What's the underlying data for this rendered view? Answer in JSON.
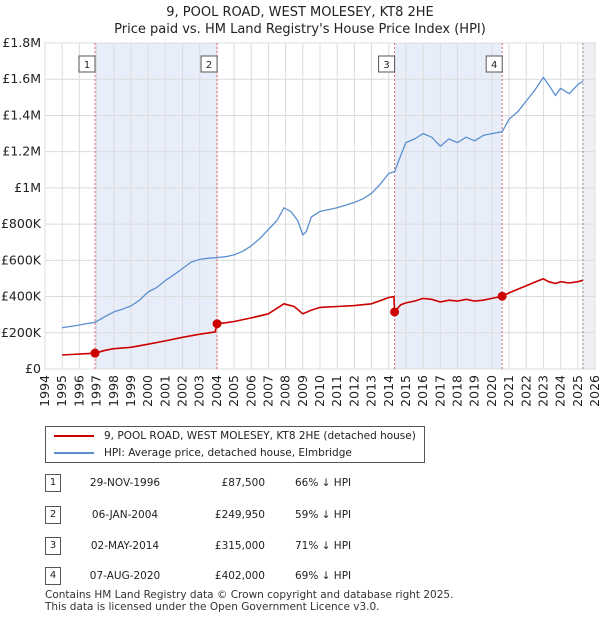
{
  "header": {
    "title": "9, POOL ROAD, WEST MOLESEY, KT8 2HE",
    "subtitle": "Price paid vs. HM Land Registry's House Price Index (HPI)"
  },
  "legend": {
    "items": [
      {
        "label": "9, POOL ROAD, WEST MOLESEY, KT8 2HE (detached house)",
        "color": "#cc0000"
      },
      {
        "label": "HPI: Average price, detached house, Elmbridge",
        "color": "#5b8fd0"
      }
    ]
  },
  "transactions": [
    {
      "num": "1",
      "date": "29-NOV-1996",
      "price": "£87,500",
      "hpi": "66% ↓ HPI"
    },
    {
      "num": "2",
      "date": "06-JAN-2004",
      "price": "£249,950",
      "hpi": "59% ↓ HPI"
    },
    {
      "num": "3",
      "date": "02-MAY-2014",
      "price": "£315,000",
      "hpi": "71% ↓ HPI"
    },
    {
      "num": "4",
      "date": "07-AUG-2020",
      "price": "£402,000",
      "hpi": "69% ↓ HPI"
    }
  ],
  "footer": {
    "line1": "Contains HM Land Registry data © Crown copyright and database right 2025.",
    "line2": "This data is licensed under the Open Government Licence v3.0."
  },
  "chart_data": {
    "type": "line",
    "title": "9, POOL ROAD, WEST MOLESEY, KT8 2HE",
    "subtitle": "Price paid vs. HM Land Registry's House Price Index (HPI)",
    "xlabel": "",
    "ylabel": "",
    "xlim": [
      1994,
      2026
    ],
    "ylim": [
      0,
      1800000
    ],
    "x_ticks": [
      "1994",
      "1995",
      "1996",
      "1997",
      "1998",
      "1999",
      "2000",
      "2001",
      "2002",
      "2003",
      "2004",
      "2005",
      "2006",
      "2007",
      "2008",
      "2009",
      "2010",
      "2011",
      "2012",
      "2013",
      "2014",
      "2015",
      "2016",
      "2017",
      "2018",
      "2019",
      "2020",
      "2021",
      "2022",
      "2023",
      "2024",
      "2025",
      "2026"
    ],
    "y_ticks": [
      {
        "value": 0,
        "label": "£0"
      },
      {
        "value": 200000,
        "label": "£200K"
      },
      {
        "value": 400000,
        "label": "£400K"
      },
      {
        "value": 600000,
        "label": "£600K"
      },
      {
        "value": 800000,
        "label": "£800K"
      },
      {
        "value": 1000000,
        "label": "£1M"
      },
      {
        "value": 1200000,
        "label": "£1.2M"
      },
      {
        "value": 1400000,
        "label": "£1.4M"
      },
      {
        "value": 1600000,
        "label": "£1.6M"
      },
      {
        "value": 1800000,
        "label": "£1.8M"
      }
    ],
    "grid": true,
    "series": [
      {
        "name": "HPI: Average price, detached house, Elmbridge",
        "color": "#5b8fd0",
        "x": [
          1995.0,
          1995.5,
          1996.0,
          1996.5,
          1996.91,
          1997.5,
          1998.0,
          1998.5,
          1999.0,
          1999.5,
          2000.0,
          2000.5,
          2001.0,
          2001.5,
          2002.0,
          2002.5,
          2003.0,
          2003.5,
          2004.0,
          2004.5,
          2005.0,
          2005.5,
          2006.0,
          2006.5,
          2007.0,
          2007.5,
          2007.9,
          2008.3,
          2008.7,
          2009.0,
          2009.2,
          2009.5,
          2010.0,
          2010.5,
          2011.0,
          2011.5,
          2012.0,
          2012.5,
          2013.0,
          2013.5,
          2014.0,
          2014.34,
          2014.7,
          2015.0,
          2015.5,
          2016.0,
          2016.5,
          2017.0,
          2017.5,
          2018.0,
          2018.5,
          2019.0,
          2019.5,
          2020.0,
          2020.6,
          2021.0,
          2021.5,
          2022.0,
          2022.5,
          2023.0,
          2023.3,
          2023.7,
          2024.0,
          2024.5,
          2025.0,
          2025.3
        ],
        "y": [
          228000,
          235000,
          243000,
          252000,
          258000,
          290000,
          315000,
          330000,
          348000,
          380000,
          425000,
          450000,
          488000,
          520000,
          555000,
          590000,
          605000,
          612000,
          615000,
          620000,
          630000,
          650000,
          680000,
          720000,
          770000,
          820000,
          890000,
          870000,
          820000,
          740000,
          760000,
          840000,
          870000,
          880000,
          890000,
          905000,
          920000,
          940000,
          970000,
          1020000,
          1080000,
          1090000,
          1180000,
          1250000,
          1270000,
          1300000,
          1280000,
          1230000,
          1270000,
          1250000,
          1280000,
          1260000,
          1290000,
          1300000,
          1310000,
          1380000,
          1420000,
          1480000,
          1540000,
          1610000,
          1570000,
          1510000,
          1550000,
          1520000,
          1570000,
          1590000
        ]
      },
      {
        "name": "9, POOL ROAD, WEST MOLESEY, KT8 2HE (detached house)",
        "color": "#cc0000",
        "x": [
          1995.0,
          1995.5,
          1996.0,
          1996.5,
          1996.91,
          1997.5,
          1998.0,
          1999.0,
          2000.0,
          2001.0,
          2002.0,
          2003.0,
          2003.9,
          2004.01,
          2004.5,
          2005.0,
          2006.0,
          2007.0,
          2007.9,
          2008.5,
          2009.0,
          2009.5,
          2010.0,
          2011.0,
          2012.0,
          2013.0,
          2014.0,
          2014.3,
          2014.34,
          2014.7,
          2015.0,
          2015.5,
          2016.0,
          2016.5,
          2017.0,
          2017.5,
          2018.0,
          2018.5,
          2019.0,
          2019.5,
          2020.0,
          2020.6,
          2021.0,
          2021.5,
          2022.0,
          2022.5,
          2023.0,
          2023.3,
          2023.7,
          2024.0,
          2024.5,
          2025.0,
          2025.3
        ],
        "y": [
          78000,
          80000,
          82000,
          85000,
          87500,
          103000,
          112000,
          120000,
          137000,
          155000,
          175000,
          192000,
          205000,
          249950,
          255000,
          262000,
          282000,
          305000,
          360000,
          345000,
          305000,
          325000,
          340000,
          345000,
          350000,
          360000,
          395000,
          400000,
          315000,
          355000,
          365000,
          375000,
          390000,
          385000,
          370000,
          380000,
          375000,
          385000,
          375000,
          380000,
          390000,
          402000,
          420000,
          440000,
          460000,
          480000,
          498000,
          482000,
          472000,
          482000,
          475000,
          482000,
          490000
        ]
      }
    ],
    "transactions": [
      {
        "label": "1",
        "x": 1996.91,
        "y": 87500
      },
      {
        "label": "2",
        "x": 2004.01,
        "y": 249950
      },
      {
        "label": "3",
        "x": 2014.34,
        "y": 315000
      },
      {
        "label": "4",
        "x": 2020.6,
        "y": 402000
      }
    ]
  }
}
